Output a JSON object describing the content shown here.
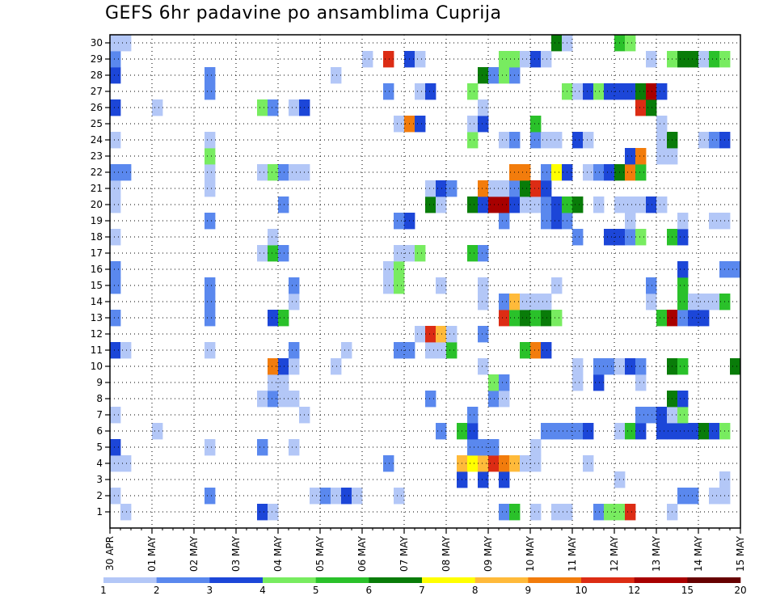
{
  "chart_data": {
    "type": "heatmap",
    "title": "GEFS 6hr padavine po ansamblima Cuprija",
    "y_ticks": [
      "1",
      "2",
      "3",
      "4",
      "5",
      "6",
      "7",
      "8",
      "9",
      "10",
      "11",
      "12",
      "13",
      "14",
      "15",
      "16",
      "17",
      "18",
      "19",
      "20",
      "21",
      "22",
      "23",
      "24",
      "25",
      "26",
      "27",
      "28",
      "29",
      "30"
    ],
    "x_ticks": [
      "30 APR",
      "01 MAY",
      "02 MAY",
      "03 MAY",
      "04 MAY",
      "05 MAY",
      "06 MAY",
      "07 MAY",
      "08 MAY",
      "09 MAY",
      "10 MAY",
      "11 MAY",
      "12 MAY",
      "13 MAY",
      "14 MAY",
      "15 MAY"
    ],
    "x_range_steps": [
      0,
      60
    ],
    "steps_per_day": 4,
    "grid": true,
    "colorbar": {
      "labels": [
        "1",
        "2",
        "3",
        "4",
        "5",
        "6",
        "7",
        "8",
        "9",
        "10",
        "12",
        "15",
        "20"
      ],
      "colors": [
        "#b3c7f7",
        "#5a88ee",
        "#1c46d8",
        "#78ec60",
        "#2ac12a",
        "#097c09",
        "#ffff00",
        "#ffba3a",
        "#f27c0c",
        "#dc2c14",
        "#a80000",
        "#660000"
      ]
    },
    "cells": [
      [
        1,
        2,
        1
      ],
      [
        1,
        15,
        3
      ],
      [
        1,
        16,
        1
      ],
      [
        1,
        38,
        2
      ],
      [
        1,
        39,
        5
      ],
      [
        1,
        41,
        1
      ],
      [
        1,
        43,
        1
      ],
      [
        1,
        44,
        1
      ],
      [
        1,
        47,
        2
      ],
      [
        1,
        48,
        4
      ],
      [
        1,
        49,
        4
      ],
      [
        1,
        50,
        10
      ],
      [
        1,
        54,
        1
      ],
      [
        2,
        1,
        1
      ],
      [
        2,
        10,
        2
      ],
      [
        2,
        20,
        1
      ],
      [
        2,
        21,
        2
      ],
      [
        2,
        22,
        1
      ],
      [
        2,
        23,
        3
      ],
      [
        2,
        24,
        1
      ],
      [
        2,
        28,
        1
      ],
      [
        2,
        55,
        2
      ],
      [
        2,
        56,
        2
      ],
      [
        2,
        58,
        1
      ],
      [
        2,
        59,
        1
      ],
      [
        3,
        34,
        3
      ],
      [
        3,
        36,
        3
      ],
      [
        3,
        38,
        3
      ],
      [
        3,
        49,
        1
      ],
      [
        3,
        59,
        1
      ],
      [
        4,
        1,
        1
      ],
      [
        4,
        2,
        1
      ],
      [
        4,
        27,
        2
      ],
      [
        4,
        34,
        8
      ],
      [
        4,
        35,
        7
      ],
      [
        4,
        36,
        8
      ],
      [
        4,
        37,
        10
      ],
      [
        4,
        38,
        9
      ],
      [
        4,
        39,
        8
      ],
      [
        4,
        40,
        1
      ],
      [
        4,
        41,
        1
      ],
      [
        4,
        46,
        1
      ],
      [
        5,
        1,
        3
      ],
      [
        5,
        10,
        1
      ],
      [
        5,
        15,
        2
      ],
      [
        5,
        18,
        1
      ],
      [
        5,
        35,
        2
      ],
      [
        5,
        36,
        2
      ],
      [
        5,
        37,
        2
      ],
      [
        5,
        41,
        1
      ],
      [
        6,
        5,
        1
      ],
      [
        6,
        32,
        2
      ],
      [
        6,
        34,
        5
      ],
      [
        6,
        35,
        3
      ],
      [
        6,
        42,
        2
      ],
      [
        6,
        43,
        2
      ],
      [
        6,
        44,
        2
      ],
      [
        6,
        45,
        2
      ],
      [
        6,
        46,
        3
      ],
      [
        6,
        49,
        1
      ],
      [
        6,
        50,
        5
      ],
      [
        6,
        51,
        3
      ],
      [
        6,
        53,
        3
      ],
      [
        6,
        54,
        3
      ],
      [
        6,
        55,
        3
      ],
      [
        6,
        56,
        3
      ],
      [
        6,
        57,
        6
      ],
      [
        6,
        58,
        3
      ],
      [
        6,
        59,
        4
      ],
      [
        7,
        1,
        1
      ],
      [
        7,
        19,
        1
      ],
      [
        7,
        35,
        2
      ],
      [
        7,
        51,
        2
      ],
      [
        7,
        52,
        2
      ],
      [
        7,
        53,
        3
      ],
      [
        7,
        54,
        1
      ],
      [
        7,
        55,
        4
      ],
      [
        8,
        15,
        1
      ],
      [
        8,
        16,
        2
      ],
      [
        8,
        17,
        1
      ],
      [
        8,
        18,
        1
      ],
      [
        8,
        31,
        2
      ],
      [
        8,
        37,
        2
      ],
      [
        8,
        38,
        1
      ],
      [
        8,
        54,
        6
      ],
      [
        8,
        55,
        3
      ],
      [
        9,
        16,
        1
      ],
      [
        9,
        17,
        1
      ],
      [
        9,
        37,
        4
      ],
      [
        9,
        38,
        2
      ],
      [
        9,
        45,
        1
      ],
      [
        9,
        47,
        3
      ],
      [
        9,
        51,
        1
      ],
      [
        10,
        16,
        9
      ],
      [
        10,
        17,
        3
      ],
      [
        10,
        18,
        1
      ],
      [
        10,
        22,
        1
      ],
      [
        10,
        36,
        1
      ],
      [
        10,
        45,
        1
      ],
      [
        10,
        47,
        2
      ],
      [
        10,
        48,
        2
      ],
      [
        10,
        49,
        1
      ],
      [
        10,
        50,
        3
      ],
      [
        10,
        51,
        2
      ],
      [
        10,
        54,
        6
      ],
      [
        10,
        55,
        5
      ],
      [
        10,
        60,
        6
      ],
      [
        11,
        1,
        3
      ],
      [
        11,
        2,
        1
      ],
      [
        11,
        10,
        1
      ],
      [
        11,
        18,
        2
      ],
      [
        11,
        23,
        1
      ],
      [
        11,
        28,
        2
      ],
      [
        11,
        29,
        2
      ],
      [
        11,
        31,
        1
      ],
      [
        11,
        32,
        1
      ],
      [
        11,
        33,
        5
      ],
      [
        11,
        40,
        5
      ],
      [
        11,
        41,
        9
      ],
      [
        11,
        42,
        3
      ],
      [
        12,
        30,
        1
      ],
      [
        12,
        31,
        10
      ],
      [
        12,
        32,
        8
      ],
      [
        12,
        33,
        1
      ],
      [
        12,
        36,
        2
      ],
      [
        13,
        1,
        2
      ],
      [
        13,
        10,
        2
      ],
      [
        13,
        16,
        3
      ],
      [
        13,
        17,
        5
      ],
      [
        13,
        38,
        10
      ],
      [
        13,
        39,
        5
      ],
      [
        13,
        40,
        6
      ],
      [
        13,
        41,
        5
      ],
      [
        13,
        42,
        6
      ],
      [
        13,
        43,
        4
      ],
      [
        13,
        53,
        5
      ],
      [
        13,
        54,
        11
      ],
      [
        13,
        55,
        2
      ],
      [
        13,
        56,
        3
      ],
      [
        13,
        57,
        3
      ],
      [
        14,
        10,
        2
      ],
      [
        14,
        18,
        1
      ],
      [
        14,
        36,
        1
      ],
      [
        14,
        38,
        2
      ],
      [
        14,
        39,
        8
      ],
      [
        14,
        40,
        1
      ],
      [
        14,
        41,
        1
      ],
      [
        14,
        42,
        1
      ],
      [
        14,
        52,
        1
      ],
      [
        14,
        55,
        5
      ],
      [
        14,
        56,
        1
      ],
      [
        14,
        57,
        1
      ],
      [
        14,
        58,
        1
      ],
      [
        14,
        59,
        5
      ],
      [
        15,
        1,
        2
      ],
      [
        15,
        10,
        2
      ],
      [
        15,
        18,
        2
      ],
      [
        15,
        27,
        1
      ],
      [
        15,
        28,
        4
      ],
      [
        15,
        32,
        1
      ],
      [
        15,
        36,
        1
      ],
      [
        15,
        43,
        1
      ],
      [
        15,
        52,
        2
      ],
      [
        15,
        55,
        5
      ],
      [
        16,
        1,
        2
      ],
      [
        16,
        27,
        1
      ],
      [
        16,
        28,
        4
      ],
      [
        16,
        55,
        3
      ],
      [
        16,
        59,
        2
      ],
      [
        16,
        60,
        2
      ],
      [
        17,
        15,
        1
      ],
      [
        17,
        16,
        5
      ],
      [
        17,
        17,
        2
      ],
      [
        17,
        28,
        1
      ],
      [
        17,
        29,
        1
      ],
      [
        17,
        30,
        4
      ],
      [
        17,
        35,
        5
      ],
      [
        17,
        36,
        2
      ],
      [
        18,
        1,
        1
      ],
      [
        18,
        16,
        1
      ],
      [
        18,
        45,
        2
      ],
      [
        18,
        48,
        3
      ],
      [
        18,
        49,
        3
      ],
      [
        18,
        50,
        2
      ],
      [
        18,
        51,
        4
      ],
      [
        18,
        54,
        5
      ],
      [
        18,
        55,
        3
      ],
      [
        19,
        10,
        2
      ],
      [
        19,
        28,
        2
      ],
      [
        19,
        29,
        3
      ],
      [
        19,
        38,
        2
      ],
      [
        19,
        42,
        2
      ],
      [
        19,
        43,
        3
      ],
      [
        19,
        44,
        2
      ],
      [
        19,
        50,
        1
      ],
      [
        19,
        55,
        1
      ],
      [
        19,
        58,
        1
      ],
      [
        19,
        59,
        1
      ],
      [
        20,
        1,
        1
      ],
      [
        20,
        17,
        2
      ],
      [
        20,
        31,
        6
      ],
      [
        20,
        32,
        1
      ],
      [
        20,
        35,
        6
      ],
      [
        20,
        36,
        3
      ],
      [
        20,
        37,
        11
      ],
      [
        20,
        38,
        11
      ],
      [
        20,
        39,
        3
      ],
      [
        20,
        40,
        1
      ],
      [
        20,
        41,
        1
      ],
      [
        20,
        42,
        2
      ],
      [
        20,
        43,
        3
      ],
      [
        20,
        44,
        5
      ],
      [
        20,
        45,
        6
      ],
      [
        20,
        47,
        1
      ],
      [
        20,
        49,
        1
      ],
      [
        20,
        50,
        1
      ],
      [
        20,
        51,
        1
      ],
      [
        20,
        52,
        3
      ],
      [
        20,
        53,
        1
      ],
      [
        21,
        1,
        1
      ],
      [
        21,
        10,
        1
      ],
      [
        21,
        31,
        1
      ],
      [
        21,
        32,
        3
      ],
      [
        21,
        33,
        2
      ],
      [
        21,
        36,
        9
      ],
      [
        21,
        37,
        1
      ],
      [
        21,
        38,
        1
      ],
      [
        21,
        39,
        2
      ],
      [
        21,
        40,
        6
      ],
      [
        21,
        41,
        10
      ],
      [
        21,
        42,
        3
      ],
      [
        22,
        1,
        2
      ],
      [
        22,
        2,
        2
      ],
      [
        22,
        10,
        1
      ],
      [
        22,
        15,
        1
      ],
      [
        22,
        16,
        4
      ],
      [
        22,
        17,
        2
      ],
      [
        22,
        18,
        1
      ],
      [
        22,
        19,
        1
      ],
      [
        22,
        39,
        9
      ],
      [
        22,
        40,
        9
      ],
      [
        22,
        42,
        2
      ],
      [
        22,
        43,
        7
      ],
      [
        22,
        44,
        3
      ],
      [
        22,
        46,
        1
      ],
      [
        22,
        47,
        2
      ],
      [
        22,
        48,
        3
      ],
      [
        22,
        49,
        6
      ],
      [
        22,
        50,
        9
      ],
      [
        22,
        51,
        5
      ],
      [
        23,
        10,
        4
      ],
      [
        23,
        50,
        3
      ],
      [
        23,
        51,
        9
      ],
      [
        23,
        53,
        1
      ],
      [
        23,
        54,
        1
      ],
      [
        24,
        1,
        1
      ],
      [
        24,
        10,
        1
      ],
      [
        24,
        35,
        4
      ],
      [
        24,
        38,
        1
      ],
      [
        24,
        39,
        2
      ],
      [
        24,
        41,
        2
      ],
      [
        24,
        42,
        1
      ],
      [
        24,
        43,
        1
      ],
      [
        24,
        45,
        3
      ],
      [
        24,
        46,
        1
      ],
      [
        24,
        53,
        1
      ],
      [
        24,
        54,
        6
      ],
      [
        24,
        57,
        1
      ],
      [
        24,
        58,
        2
      ],
      [
        24,
        59,
        3
      ],
      [
        25,
        28,
        1
      ],
      [
        25,
        29,
        9
      ],
      [
        25,
        30,
        3
      ],
      [
        25,
        35,
        1
      ],
      [
        25,
        36,
        3
      ],
      [
        25,
        41,
        5
      ],
      [
        25,
        53,
        1
      ],
      [
        26,
        1,
        3
      ],
      [
        26,
        5,
        1
      ],
      [
        26,
        15,
        4
      ],
      [
        26,
        16,
        2
      ],
      [
        26,
        18,
        1
      ],
      [
        26,
        19,
        3
      ],
      [
        26,
        36,
        1
      ],
      [
        26,
        51,
        10
      ],
      [
        26,
        52,
        6
      ],
      [
        27,
        10,
        2
      ],
      [
        27,
        27,
        2
      ],
      [
        27,
        30,
        1
      ],
      [
        27,
        31,
        3
      ],
      [
        27,
        35,
        4
      ],
      [
        27,
        44,
        4
      ],
      [
        27,
        45,
        1
      ],
      [
        27,
        46,
        3
      ],
      [
        27,
        47,
        4
      ],
      [
        27,
        48,
        3
      ],
      [
        27,
        49,
        3
      ],
      [
        27,
        50,
        3
      ],
      [
        27,
        51,
        6
      ],
      [
        27,
        52,
        11
      ],
      [
        27,
        53,
        3
      ],
      [
        28,
        1,
        3
      ],
      [
        28,
        10,
        2
      ],
      [
        28,
        22,
        1
      ],
      [
        28,
        36,
        6
      ],
      [
        28,
        37,
        2
      ],
      [
        28,
        38,
        4
      ],
      [
        28,
        39,
        2
      ],
      [
        29,
        1,
        2
      ],
      [
        29,
        25,
        1
      ],
      [
        29,
        27,
        10
      ],
      [
        29,
        29,
        3
      ],
      [
        29,
        30,
        1
      ],
      [
        29,
        38,
        4
      ],
      [
        29,
        39,
        4
      ],
      [
        29,
        40,
        1
      ],
      [
        29,
        41,
        3
      ],
      [
        29,
        42,
        1
      ],
      [
        29,
        52,
        1
      ],
      [
        29,
        54,
        4
      ],
      [
        29,
        55,
        6
      ],
      [
        29,
        56,
        6
      ],
      [
        29,
        57,
        1
      ],
      [
        29,
        58,
        5
      ],
      [
        29,
        59,
        4
      ],
      [
        30,
        1,
        1
      ],
      [
        30,
        2,
        1
      ],
      [
        30,
        43,
        6
      ],
      [
        30,
        44,
        1
      ],
      [
        30,
        49,
        5
      ],
      [
        30,
        50,
        4
      ]
    ]
  }
}
